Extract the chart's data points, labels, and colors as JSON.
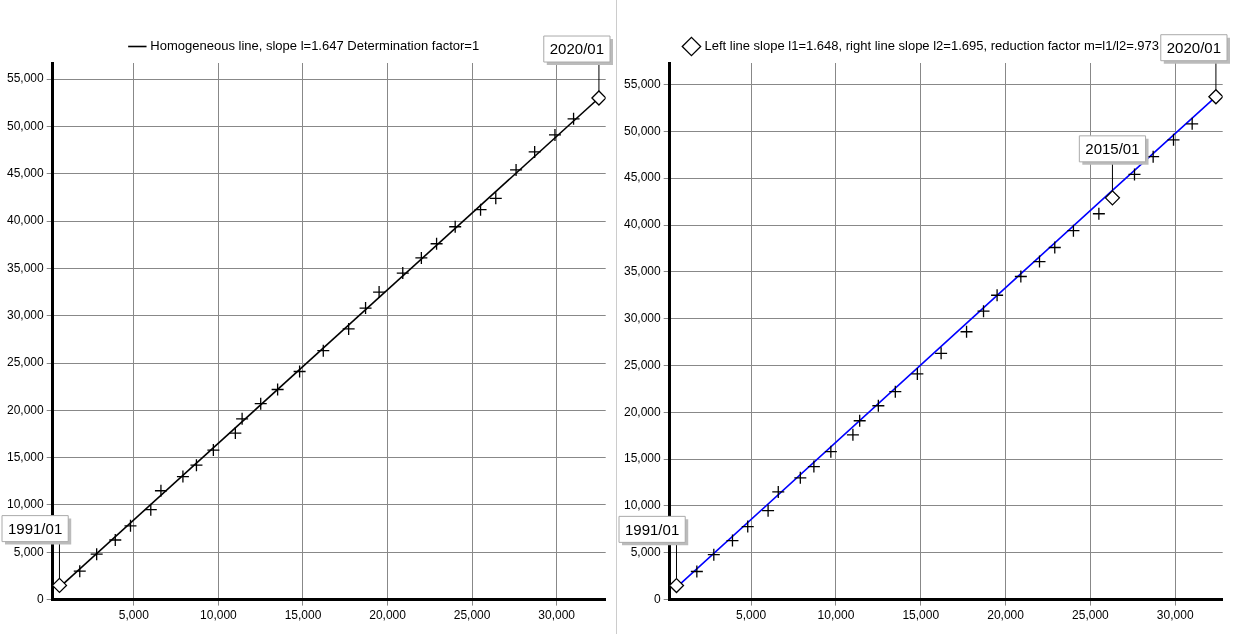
{
  "chart_data": [
    {
      "type": "scatter",
      "legend": "top",
      "grid": true,
      "xlim": [
        200,
        32900
      ],
      "ylim": [
        0,
        56700
      ],
      "xticks": [
        {
          "value": 5000,
          "label": "5,000"
        },
        {
          "value": 10000,
          "label": "10,000"
        },
        {
          "value": 15000,
          "label": "15,000"
        },
        {
          "value": 20000,
          "label": "20,000"
        },
        {
          "value": 25000,
          "label": "25,000"
        },
        {
          "value": 30000,
          "label": "30,000"
        }
      ],
      "yticks": [
        0,
        {
          "value": 5000,
          "label": "5,000"
        },
        {
          "value": 10000,
          "label": "10,000"
        },
        {
          "value": 15000,
          "label": "15,000"
        },
        {
          "value": 20000,
          "label": "20,000"
        },
        {
          "value": 25000,
          "label": "25,000"
        },
        {
          "value": 30000,
          "label": "30,000"
        },
        {
          "value": 35000,
          "label": "35,000"
        },
        {
          "value": 40000,
          "label": "40,000"
        },
        {
          "value": 45000,
          "label": "45,000"
        },
        {
          "value": 50000,
          "label": "50,000"
        },
        {
          "value": 55000,
          "label": "55,000"
        }
      ],
      "series": [
        {
          "type": "line",
          "name": "Homogeneous line, slope l=1.647 Determination factor=1",
          "color": "#000000",
          "marker": "none",
          "x": [
            600,
            32500
          ],
          "values": [
            1300,
            53000
          ]
        },
        {
          "type": "scatter",
          "color": "#000000",
          "marker": "cross",
          "x": [
            1800,
            2800,
            3900,
            4800,
            6000,
            6600,
            7900,
            8700,
            9700,
            11000,
            11400,
            12500,
            13500,
            14800,
            16200,
            17700,
            18700,
            19500,
            20900,
            22000,
            22900,
            24000,
            25500,
            26400,
            27600,
            28700,
            29900,
            31000
          ],
          "values": [
            3000,
            4800,
            6300,
            7800,
            9500,
            11500,
            13000,
            14200,
            15800,
            17600,
            19100,
            20700,
            22200,
            24100,
            26300,
            28600,
            30800,
            32500,
            34500,
            36100,
            37600,
            39400,
            41200,
            42400,
            45400,
            47300,
            49100,
            50800
          ]
        },
        {
          "type": "scatter",
          "color": "#000000",
          "marker": "diamond",
          "x": [
            600,
            32500
          ],
          "values": [
            1500,
            53000
          ]
        }
      ],
      "annotations": [
        {
          "text": "1991/01",
          "x": 600,
          "y": 1500
        },
        {
          "text": "2020/01",
          "x": 32500,
          "y": 53000
        }
      ]
    },
    {
      "type": "scatter",
      "legend": "top",
      "grid": true,
      "xlim": [
        200,
        32800
      ],
      "ylim": [
        0,
        57300
      ],
      "xticks": [
        {
          "value": 5000,
          "label": "5,000"
        },
        {
          "value": 10000,
          "label": "10,000"
        },
        {
          "value": 15000,
          "label": "15,000"
        },
        {
          "value": 20000,
          "label": "20,000"
        },
        {
          "value": 25000,
          "label": "25,000"
        },
        {
          "value": 30000,
          "label": "30,000"
        }
      ],
      "yticks": [
        0,
        {
          "value": 5000,
          "label": "5,000"
        },
        {
          "value": 10000,
          "label": "10,000"
        },
        {
          "value": 15000,
          "label": "15,000"
        },
        {
          "value": 20000,
          "label": "20,000"
        },
        {
          "value": 25000,
          "label": "25,000"
        },
        {
          "value": 30000,
          "label": "30,000"
        },
        {
          "value": 35000,
          "label": "35,000"
        },
        {
          "value": 40000,
          "label": "40,000"
        },
        {
          "value": 45000,
          "label": "45,000"
        },
        {
          "value": 50000,
          "label": "50,000"
        },
        {
          "value": 55000,
          "label": "55,000"
        }
      ],
      "series": [
        {
          "type": "line",
          "color": "#0000ff",
          "marker": "none",
          "x": [
            600,
            26300,
            32400
          ],
          "values": [
            1300,
            43700,
            53700
          ]
        },
        {
          "type": "scatter",
          "color": "#000000",
          "marker": "cross",
          "x": [
            1800,
            2800,
            3900,
            4800,
            6000,
            6600,
            7900,
            8700,
            9700,
            11000,
            11400,
            12500,
            13500,
            14800,
            16200,
            17700,
            18700,
            19500,
            20900,
            22000,
            22900,
            24000,
            25500,
            27600,
            28700,
            29900,
            31000
          ],
          "values": [
            3000,
            4800,
            6300,
            7800,
            9500,
            11500,
            13000,
            14200,
            15800,
            17600,
            19100,
            20700,
            22200,
            24100,
            26300,
            28600,
            30800,
            32500,
            34500,
            36100,
            37600,
            39400,
            41200,
            45400,
            47300,
            49100,
            50800
          ]
        },
        {
          "type": "scatter",
          "name": "Left line slope l1=1.648, right line slope l2=1.695, reduction factor m=l1/l2=.973",
          "color": "#000000",
          "marker": "diamond",
          "x": [
            600,
            26300,
            32400
          ],
          "values": [
            1500,
            42900,
            53700
          ]
        }
      ],
      "annotations": [
        {
          "text": "1991/01",
          "x": 600,
          "y": 1500
        },
        {
          "text": "2015/01",
          "x": 26300,
          "y": 42900
        },
        {
          "text": "2020/01",
          "x": 32400,
          "y": 53700
        }
      ]
    }
  ]
}
